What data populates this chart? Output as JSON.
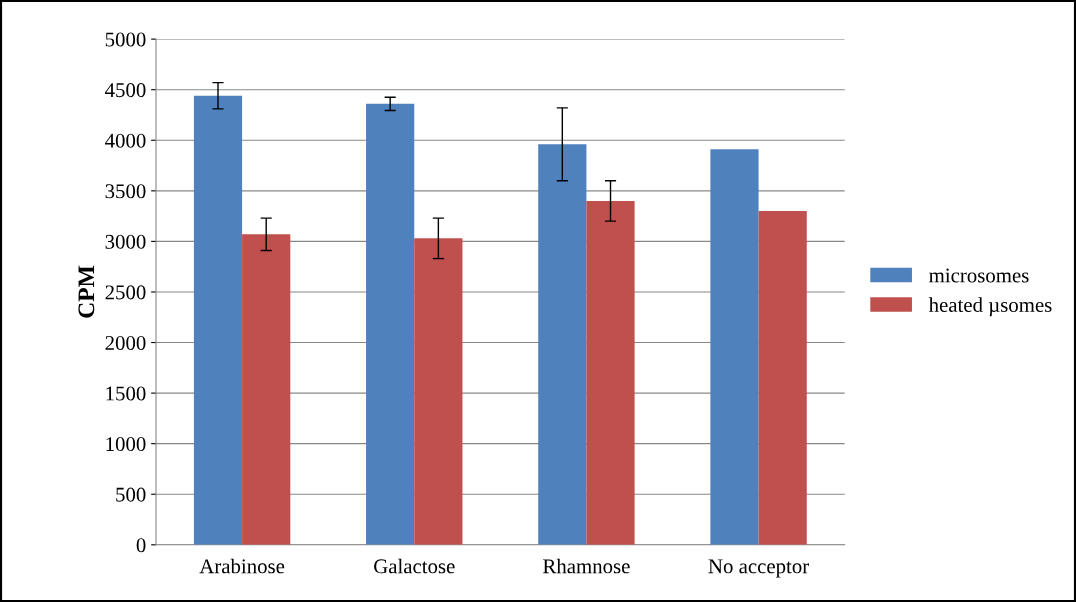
{
  "chart_data": {
    "type": "bar",
    "ylabel": "CPM",
    "categories": [
      "Arabinose",
      "Galactose",
      "Rhamnose",
      "No acceptor"
    ],
    "series": [
      {
        "name": "microsomes",
        "color": "#4f81bd",
        "values": [
          4440,
          4360,
          3960,
          3910
        ],
        "errors": [
          130,
          65,
          360,
          null
        ]
      },
      {
        "name": "heated µsomes",
        "color": "#c0504d",
        "values": [
          3070,
          3030,
          3400,
          3300
        ],
        "errors": [
          160,
          200,
          200,
          null
        ]
      }
    ],
    "ylim": [
      0,
      5000
    ],
    "yticks": [
      0,
      500,
      1000,
      1500,
      2000,
      2500,
      3000,
      3500,
      4000,
      4500,
      5000
    ],
    "grid": "y",
    "legend": "right"
  }
}
